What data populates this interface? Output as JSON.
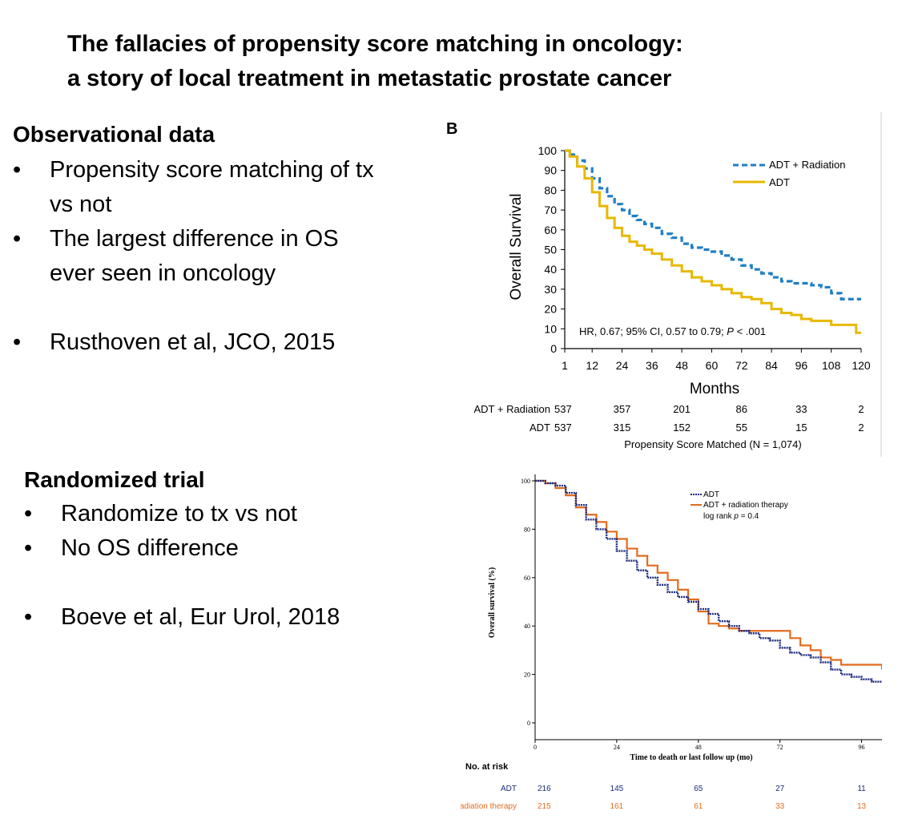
{
  "slide": {
    "title_line1": "The fallacies of propensity score matching in oncology:",
    "title_line2": "a story of local treatment in metastatic prostate cancer"
  },
  "observational": {
    "heading": "Observational data",
    "bullets": [
      "Propensity score matching of tx vs not",
      "The largest difference in OS ever seen in oncology",
      "Rusthoven et al, JCO, 2015"
    ]
  },
  "randomized": {
    "heading": "Randomized trial",
    "bullets": [
      "Randomize to tx vs not",
      "No OS difference",
      "Boeve et al, Eur Urol, 2018"
    ]
  },
  "chart_data": [
    {
      "type": "line",
      "panel_label": "B",
      "title": "",
      "xlabel": "Months",
      "ylabel": "Overall Survival",
      "xlim": [
        1,
        120
      ],
      "ylim": [
        0,
        100
      ],
      "xticks": [
        1,
        12,
        24,
        36,
        48,
        60,
        72,
        84,
        96,
        108,
        120
      ],
      "yticks": [
        0,
        10,
        20,
        30,
        40,
        50,
        60,
        70,
        80,
        90,
        100
      ],
      "legend_position": "top-right",
      "annotation": {
        "prefix": "HR, 0.67; 95% CI, 0.57 to 0.79; ",
        "p_label": "P",
        "suffix": " < .001"
      },
      "series": [
        {
          "name": "ADT + Radiation",
          "color": "#1f7fc4",
          "style": "dashed",
          "x": [
            1,
            3,
            6,
            9,
            12,
            15,
            18,
            21,
            24,
            27,
            30,
            33,
            36,
            40,
            44,
            48,
            52,
            56,
            60,
            64,
            68,
            72,
            76,
            80,
            84,
            88,
            92,
            96,
            100,
            104,
            108,
            112,
            116,
            120
          ],
          "y": [
            100,
            98,
            95,
            91,
            86,
            81,
            77,
            73,
            70,
            67,
            65,
            63,
            61,
            58,
            56,
            53,
            51,
            50,
            49,
            47,
            45,
            42,
            40,
            38,
            36,
            34,
            33,
            33,
            32,
            31,
            28,
            25,
            25,
            25
          ]
        },
        {
          "name": "ADT",
          "color": "#e8b800",
          "style": "solid",
          "x": [
            1,
            3,
            6,
            9,
            12,
            15,
            18,
            21,
            24,
            27,
            30,
            33,
            36,
            40,
            44,
            48,
            52,
            56,
            60,
            64,
            68,
            72,
            76,
            80,
            84,
            88,
            92,
            96,
            100,
            104,
            108,
            112,
            116,
            118,
            120
          ],
          "y": [
            100,
            97,
            92,
            86,
            79,
            72,
            66,
            61,
            57,
            54,
            52,
            50,
            48,
            45,
            42,
            39,
            36,
            34,
            32,
            30,
            28,
            26,
            25,
            23,
            20,
            18,
            17,
            15,
            14,
            14,
            12,
            12,
            12,
            8,
            8
          ]
        }
      ],
      "at_risk": {
        "columns": [
          1,
          24,
          48,
          72,
          96,
          120
        ],
        "rows": [
          {
            "label": "ADT + Radiation",
            "values": [
              537,
              357,
              201,
              86,
              33,
              2
            ]
          },
          {
            "label": "ADT",
            "values": [
              537,
              315,
              152,
              55,
              15,
              2
            ]
          }
        ]
      },
      "caption": "Propensity Score Matched (N = 1,074)"
    },
    {
      "type": "line",
      "title": "",
      "xlabel": "Time to death or last follow up (mo)",
      "ylabel": "Overall survival (%)",
      "xlim": [
        0,
        102
      ],
      "ylim": [
        0,
        100
      ],
      "xticks": [
        0,
        24,
        48,
        72,
        96
      ],
      "yticks": [
        0,
        20,
        40,
        60,
        80,
        100
      ],
      "legend_position": "top-right",
      "annotation": {
        "prefix": "log rank ",
        "p_label": "p",
        "suffix": " = 0.4"
      },
      "series": [
        {
          "name": "ADT",
          "color": "#1c2a80",
          "style": "dotted",
          "x": [
            0,
            3,
            6,
            9,
            12,
            15,
            18,
            21,
            24,
            27,
            30,
            33,
            36,
            39,
            42,
            45,
            48,
            51,
            54,
            57,
            60,
            63,
            66,
            69,
            72,
            75,
            78,
            81,
            84,
            87,
            90,
            93,
            96,
            99,
            102
          ],
          "y": [
            100,
            99,
            98,
            95,
            90,
            84,
            80,
            76,
            71,
            67,
            63,
            60,
            57,
            54,
            52,
            50,
            47,
            45,
            42,
            40,
            38,
            37,
            35,
            34,
            31,
            29,
            28,
            27,
            25,
            22,
            20,
            19,
            18,
            17,
            17
          ]
        },
        {
          "name": "ADT + radiation therapy",
          "color": "#e36c1e",
          "style": "solid",
          "x": [
            0,
            3,
            6,
            9,
            12,
            15,
            18,
            21,
            24,
            27,
            30,
            33,
            36,
            39,
            42,
            45,
            48,
            51,
            54,
            57,
            60,
            63,
            66,
            69,
            72,
            75,
            78,
            81,
            84,
            87,
            90,
            93,
            96,
            99,
            102
          ],
          "y": [
            100,
            99,
            97,
            94,
            89,
            86,
            83,
            79,
            76,
            72,
            69,
            65,
            62,
            59,
            55,
            51,
            46,
            41,
            40,
            39,
            38,
            38,
            38,
            38,
            38,
            35,
            32,
            30,
            27,
            26,
            24,
            24,
            24,
            24,
            22
          ]
        }
      ],
      "at_risk": {
        "heading": "No. at risk",
        "columns": [
          0,
          24,
          48,
          72,
          96
        ],
        "rows": [
          {
            "label": "ADT",
            "values": [
              216,
              145,
              65,
              27,
              11
            ]
          },
          {
            "label": "ADT + radiation therapy",
            "values": [
              215,
              161,
              61,
              33,
              13
            ]
          }
        ]
      }
    }
  ]
}
